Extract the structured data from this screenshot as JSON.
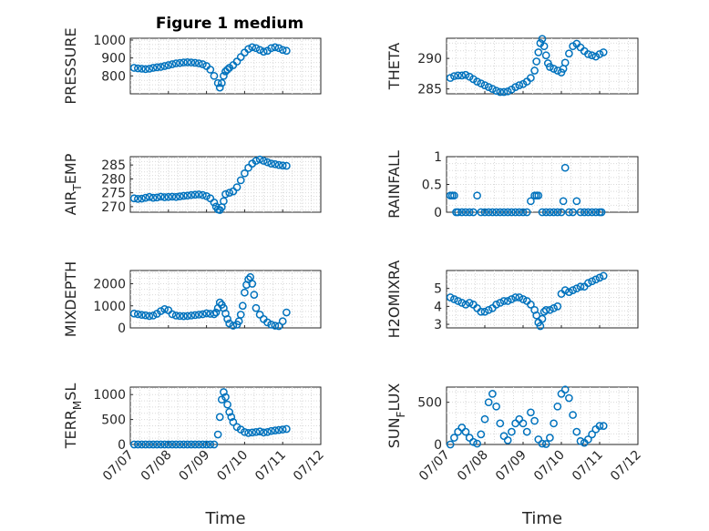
{
  "figure": {
    "title": "Figure 1 medium",
    "xlabel": "Time",
    "marker_color": "#0072BD",
    "x_ticks": [
      {
        "value": 7.0,
        "label": "07/07"
      },
      {
        "value": 8.0,
        "label": "07/08"
      },
      {
        "value": 9.0,
        "label": "07/09"
      },
      {
        "value": 10.0,
        "label": "07/10"
      },
      {
        "value": 11.0,
        "label": "07/11"
      },
      {
        "value": 12.0,
        "label": "07/12"
      }
    ]
  },
  "chart_data": [
    {
      "type": "scatter",
      "ylabel": "PRESSURE",
      "xlim": [
        7,
        12
      ],
      "ylim": [
        700,
        1010
      ],
      "yticks": [
        800,
        900,
        1000
      ],
      "x": [
        7.1,
        7.2,
        7.3,
        7.4,
        7.5,
        7.6,
        7.7,
        7.8,
        7.9,
        8.0,
        8.1,
        8.2,
        8.3,
        8.4,
        8.5,
        8.6,
        8.7,
        8.8,
        8.9,
        9.0,
        9.1,
        9.2,
        9.3,
        9.35,
        9.4,
        9.45,
        9.5,
        9.55,
        9.6,
        9.7,
        9.8,
        9.9,
        10.0,
        10.1,
        10.2,
        10.3,
        10.4,
        10.5,
        10.6,
        10.7,
        10.8,
        10.9,
        11.0,
        11.1
      ],
      "y": [
        845,
        842,
        840,
        838,
        840,
        845,
        848,
        850,
        855,
        860,
        865,
        870,
        872,
        875,
        876,
        875,
        873,
        870,
        865,
        855,
        835,
        800,
        760,
        735,
        760,
        800,
        825,
        835,
        845,
        860,
        880,
        905,
        930,
        950,
        960,
        955,
        945,
        935,
        940,
        955,
        960,
        955,
        945,
        940
      ]
    },
    {
      "type": "scatter",
      "ylabel": "THETA",
      "xlim": [
        7,
        12
      ],
      "ylim": [
        284.2,
        293.3
      ],
      "yticks": [
        285,
        290
      ],
      "x": [
        7.1,
        7.2,
        7.3,
        7.4,
        7.5,
        7.6,
        7.7,
        7.8,
        7.9,
        8.0,
        8.1,
        8.2,
        8.3,
        8.4,
        8.5,
        8.6,
        8.7,
        8.8,
        8.9,
        9.0,
        9.1,
        9.2,
        9.3,
        9.35,
        9.4,
        9.45,
        9.5,
        9.55,
        9.6,
        9.65,
        9.7,
        9.8,
        9.9,
        10.0,
        10.05,
        10.1,
        10.2,
        10.3,
        10.4,
        10.5,
        10.6,
        10.7,
        10.8,
        10.9,
        11.0,
        11.1
      ],
      "y": [
        286.8,
        287.1,
        287.2,
        287.2,
        287.3,
        287.0,
        286.6,
        286.2,
        285.9,
        285.6,
        285.3,
        285.0,
        284.7,
        284.5,
        284.5,
        284.6,
        284.9,
        285.3,
        285.6,
        285.8,
        286.2,
        286.8,
        288.0,
        289.5,
        291.0,
        292.5,
        293.2,
        292.0,
        290.5,
        289.2,
        288.6,
        288.3,
        288.0,
        287.7,
        288.3,
        289.3,
        290.8,
        292.0,
        292.4,
        291.8,
        291.2,
        290.7,
        290.5,
        290.3,
        290.7,
        291.0
      ]
    },
    {
      "type": "scatter",
      "ylabel": "AIR_TEMP",
      "ylabel_parts": [
        "AIR",
        "T",
        "EMP"
      ],
      "xlim": [
        7,
        12
      ],
      "ylim": [
        268,
        288
      ],
      "yticks": [
        270,
        275,
        280,
        285
      ],
      "x": [
        7.1,
        7.2,
        7.3,
        7.4,
        7.5,
        7.6,
        7.7,
        7.8,
        7.9,
        8.0,
        8.1,
        8.2,
        8.3,
        8.4,
        8.5,
        8.6,
        8.7,
        8.8,
        8.9,
        9.0,
        9.1,
        9.2,
        9.25,
        9.3,
        9.35,
        9.4,
        9.45,
        9.5,
        9.6,
        9.7,
        9.8,
        9.9,
        10.0,
        10.1,
        10.2,
        10.3,
        10.4,
        10.5,
        10.6,
        10.7,
        10.8,
        10.9,
        11.0,
        11.1
      ],
      "y": [
        273.0,
        272.8,
        272.9,
        273.2,
        273.5,
        273.2,
        273.3,
        273.6,
        273.4,
        273.5,
        273.6,
        273.5,
        273.7,
        273.9,
        274.0,
        274.2,
        274.3,
        274.4,
        274.2,
        273.8,
        273.0,
        271.5,
        270.0,
        269.0,
        268.8,
        269.8,
        272.0,
        274.5,
        275.0,
        275.5,
        277.0,
        279.5,
        282.0,
        284.0,
        285.5,
        286.5,
        287.0,
        286.5,
        286.0,
        285.5,
        285.3,
        285.0,
        284.8,
        284.7
      ]
    },
    {
      "type": "scatter",
      "ylabel": "RAINFALL",
      "xlim": [
        7,
        12
      ],
      "ylim": [
        0,
        1
      ],
      "yticks": [
        0,
        0.5,
        1
      ],
      "x": [
        7.1,
        7.15,
        7.2,
        7.25,
        7.3,
        7.4,
        7.5,
        7.6,
        7.7,
        7.8,
        7.9,
        8.0,
        8.1,
        8.2,
        8.3,
        8.4,
        8.5,
        8.6,
        8.7,
        8.8,
        8.9,
        9.0,
        9.1,
        9.2,
        9.3,
        9.35,
        9.4,
        9.5,
        9.6,
        9.7,
        9.8,
        9.9,
        10.0,
        10.05,
        10.1,
        10.2,
        10.3,
        10.4,
        10.5,
        10.6,
        10.7,
        10.8,
        10.9,
        11.0,
        11.05
      ],
      "y": [
        0.3,
        0.3,
        0.3,
        0,
        0,
        0,
        0,
        0,
        0,
        0.3,
        0,
        0,
        0,
        0,
        0,
        0,
        0,
        0,
        0,
        0,
        0,
        0,
        0,
        0.2,
        0.3,
        0.3,
        0.3,
        0,
        0,
        0,
        0,
        0,
        0,
        0.2,
        0.8,
        0,
        0,
        0.2,
        0,
        0,
        0,
        0,
        0,
        0,
        0
      ]
    },
    {
      "type": "scatter",
      "ylabel": "MIXDEPTH",
      "xlim": [
        7,
        12
      ],
      "ylim": [
        0,
        2600
      ],
      "yticks": [
        0,
        1000,
        2000
      ],
      "x": [
        7.1,
        7.2,
        7.3,
        7.4,
        7.5,
        7.6,
        7.7,
        7.8,
        7.9,
        8.0,
        8.1,
        8.2,
        8.3,
        8.4,
        8.5,
        8.6,
        8.7,
        8.8,
        8.9,
        9.0,
        9.1,
        9.2,
        9.25,
        9.3,
        9.35,
        9.4,
        9.45,
        9.5,
        9.55,
        9.6,
        9.7,
        9.8,
        9.85,
        9.9,
        9.95,
        10.0,
        10.05,
        10.1,
        10.15,
        10.2,
        10.25,
        10.3,
        10.4,
        10.5,
        10.6,
        10.7,
        10.8,
        10.9,
        11.0,
        11.1
      ],
      "y": [
        650,
        620,
        590,
        570,
        540,
        560,
        640,
        760,
        850,
        800,
        620,
        560,
        540,
        530,
        540,
        560,
        580,
        600,
        620,
        660,
        640,
        620,
        700,
        900,
        1150,
        1050,
        900,
        650,
        400,
        200,
        100,
        150,
        300,
        600,
        1000,
        1600,
        1950,
        2200,
        2300,
        2000,
        1500,
        900,
        600,
        400,
        250,
        150,
        100,
        80,
        300,
        700
      ]
    },
    {
      "type": "scatter",
      "ylabel": "H2OMIXRA",
      "xlim": [
        7,
        12
      ],
      "ylim": [
        2.8,
        6
      ],
      "yticks": [
        3,
        4,
        5
      ],
      "x": [
        7.1,
        7.2,
        7.3,
        7.4,
        7.5,
        7.6,
        7.7,
        7.8,
        7.9,
        8.0,
        8.1,
        8.2,
        8.3,
        8.4,
        8.5,
        8.6,
        8.7,
        8.8,
        8.9,
        9.0,
        9.1,
        9.2,
        9.3,
        9.35,
        9.4,
        9.45,
        9.5,
        9.55,
        9.6,
        9.7,
        9.8,
        9.9,
        10.0,
        10.1,
        10.2,
        10.3,
        10.4,
        10.5,
        10.6,
        10.7,
        10.8,
        10.9,
        11.0,
        11.1
      ],
      "y": [
        4.5,
        4.4,
        4.3,
        4.2,
        4.1,
        4.2,
        4.1,
        3.9,
        3.7,
        3.7,
        3.8,
        3.9,
        4.1,
        4.2,
        4.3,
        4.3,
        4.4,
        4.5,
        4.5,
        4.4,
        4.3,
        4.1,
        3.8,
        3.5,
        3.1,
        2.9,
        3.3,
        3.7,
        3.8,
        3.8,
        3.9,
        4.0,
        4.7,
        4.9,
        4.8,
        4.9,
        5.0,
        5.1,
        5.1,
        5.3,
        5.4,
        5.5,
        5.6,
        5.7
      ]
    },
    {
      "type": "scatter",
      "ylabel": "TERR_MSL",
      "ylabel_parts": [
        "TERR",
        "M",
        "SL"
      ],
      "xlim": [
        7,
        12
      ],
      "ylim": [
        0,
        1150
      ],
      "yticks": [
        0,
        500,
        1000
      ],
      "x": [
        7.1,
        7.2,
        7.3,
        7.4,
        7.5,
        7.6,
        7.7,
        7.8,
        7.9,
        8.0,
        8.1,
        8.2,
        8.3,
        8.4,
        8.5,
        8.6,
        8.7,
        8.8,
        8.9,
        9.0,
        9.1,
        9.2,
        9.3,
        9.35,
        9.4,
        9.45,
        9.5,
        9.55,
        9.6,
        9.65,
        9.7,
        9.8,
        9.9,
        10.0,
        10.1,
        10.2,
        10.3,
        10.4,
        10.5,
        10.6,
        10.7,
        10.8,
        10.9,
        11.0,
        11.1
      ],
      "y": [
        0,
        0,
        0,
        0,
        0,
        0,
        0,
        0,
        0,
        0,
        0,
        0,
        0,
        0,
        0,
        0,
        0,
        0,
        0,
        0,
        0,
        0,
        200,
        550,
        900,
        1050,
        950,
        800,
        650,
        550,
        450,
        350,
        300,
        250,
        230,
        240,
        250,
        260,
        240,
        250,
        270,
        280,
        290,
        300,
        310
      ]
    },
    {
      "type": "scatter",
      "ylabel": "SUN_FLUX",
      "ylabel_parts": [
        "SUN",
        "F",
        "LUX"
      ],
      "xlim": [
        7,
        12
      ],
      "ylim": [
        0,
        680
      ],
      "yticks": [
        0,
        500
      ],
      "x": [
        7.1,
        7.2,
        7.3,
        7.4,
        7.5,
        7.6,
        7.7,
        7.8,
        7.9,
        8.0,
        8.1,
        8.2,
        8.3,
        8.4,
        8.5,
        8.6,
        8.7,
        8.8,
        8.9,
        9.0,
        9.1,
        9.2,
        9.3,
        9.4,
        9.5,
        9.6,
        9.7,
        9.8,
        9.9,
        10.0,
        10.1,
        10.2,
        10.3,
        10.4,
        10.5,
        10.6,
        10.7,
        10.8,
        10.9,
        11.0,
        11.1
      ],
      "y": [
        0,
        80,
        150,
        200,
        150,
        80,
        30,
        10,
        120,
        300,
        500,
        600,
        450,
        250,
        100,
        50,
        150,
        250,
        300,
        250,
        150,
        380,
        280,
        60,
        10,
        5,
        80,
        250,
        450,
        600,
        650,
        550,
        350,
        150,
        40,
        20,
        60,
        120,
        180,
        220,
        220
      ]
    }
  ]
}
